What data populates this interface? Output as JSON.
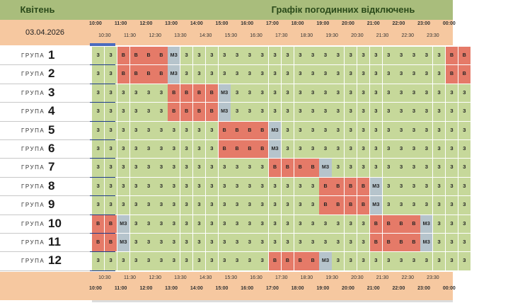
{
  "header": {
    "month": "Квітень",
    "title": "Графік погодинних відключень",
    "date": "03.04.2026"
  },
  "timeline": {
    "hours": [
      "10:00",
      "11:00",
      "12:00",
      "13:00",
      "14:00",
      "15:00",
      "16:00",
      "17:00",
      "18:00",
      "19:00",
      "20:00",
      "21:00",
      "22:00",
      "23:00",
      "00:00"
    ],
    "half_hours": [
      "10:30",
      "11:30",
      "12:30",
      "13:30",
      "14:30",
      "15:30",
      "16:30",
      "17:30",
      "18:30",
      "19:30",
      "20:30",
      "21:30",
      "22:30",
      "23:30"
    ]
  },
  "legend_codes": {
    "on": "З",
    "off": "В",
    "maybe": "МЗ"
  },
  "group_word": "ГРУПА",
  "colors": {
    "on": "#c6d89a",
    "off": "#e57a68",
    "maybe": "#b6c4cc",
    "header": "#a9bd7c",
    "peach": "#f6c8a0"
  },
  "groups": [
    {
      "label": "1",
      "cells": [
        "З",
        "З",
        "В",
        "В",
        "В",
        "В",
        "МЗ",
        "З",
        "З",
        "З",
        "З",
        "З",
        "З",
        "З",
        "З",
        "З",
        "З",
        "З",
        "З",
        "З",
        "З",
        "З",
        "З",
        "З",
        "З",
        "З",
        "З",
        "З",
        "В",
        "В"
      ]
    },
    {
      "label": "2",
      "cells": [
        "З",
        "З",
        "В",
        "В",
        "В",
        "В",
        "МЗ",
        "З",
        "З",
        "З",
        "З",
        "З",
        "З",
        "З",
        "З",
        "З",
        "З",
        "З",
        "З",
        "З",
        "З",
        "З",
        "З",
        "З",
        "З",
        "З",
        "З",
        "З",
        "В",
        "В"
      ]
    },
    {
      "label": "3",
      "cells": [
        "З",
        "З",
        "З",
        "З",
        "З",
        "З",
        "В",
        "В",
        "В",
        "В",
        "МЗ",
        "З",
        "З",
        "З",
        "З",
        "З",
        "З",
        "З",
        "З",
        "З",
        "З",
        "З",
        "З",
        "З",
        "З",
        "З",
        "З",
        "З",
        "З",
        "З"
      ]
    },
    {
      "label": "4",
      "cells": [
        "З",
        "З",
        "З",
        "З",
        "З",
        "З",
        "В",
        "В",
        "В",
        "В",
        "МЗ",
        "З",
        "З",
        "З",
        "З",
        "З",
        "З",
        "З",
        "З",
        "З",
        "З",
        "З",
        "З",
        "З",
        "З",
        "З",
        "З",
        "З",
        "З",
        "З"
      ]
    },
    {
      "label": "5",
      "cells": [
        "З",
        "З",
        "З",
        "З",
        "З",
        "З",
        "З",
        "З",
        "З",
        "З",
        "В",
        "В",
        "В",
        "В",
        "МЗ",
        "З",
        "З",
        "З",
        "З",
        "З",
        "З",
        "З",
        "З",
        "З",
        "З",
        "З",
        "З",
        "З",
        "З",
        "З"
      ]
    },
    {
      "label": "6",
      "cells": [
        "З",
        "З",
        "З",
        "З",
        "З",
        "З",
        "З",
        "З",
        "З",
        "З",
        "В",
        "В",
        "В",
        "В",
        "МЗ",
        "З",
        "З",
        "З",
        "З",
        "З",
        "З",
        "З",
        "З",
        "З",
        "З",
        "З",
        "З",
        "З",
        "З",
        "З"
      ]
    },
    {
      "label": "7",
      "cells": [
        "З",
        "З",
        "З",
        "З",
        "З",
        "З",
        "З",
        "З",
        "З",
        "З",
        "З",
        "З",
        "З",
        "З",
        "В",
        "В",
        "В",
        "В",
        "МЗ",
        "З",
        "З",
        "З",
        "З",
        "З",
        "З",
        "З",
        "З",
        "З",
        "З",
        "З"
      ]
    },
    {
      "label": "8",
      "cells": [
        "З",
        "З",
        "З",
        "З",
        "З",
        "З",
        "З",
        "З",
        "З",
        "З",
        "З",
        "З",
        "З",
        "З",
        "З",
        "З",
        "З",
        "З",
        "В",
        "В",
        "В",
        "В",
        "МЗ",
        "З",
        "З",
        "З",
        "З",
        "З",
        "З",
        "З"
      ]
    },
    {
      "label": "9",
      "cells": [
        "З",
        "З",
        "З",
        "З",
        "З",
        "З",
        "З",
        "З",
        "З",
        "З",
        "З",
        "З",
        "З",
        "З",
        "З",
        "З",
        "З",
        "З",
        "В",
        "В",
        "В",
        "В",
        "МЗ",
        "З",
        "З",
        "З",
        "З",
        "З",
        "З",
        "З"
      ]
    },
    {
      "label": "10",
      "cells": [
        "В",
        "В",
        "МЗ",
        "З",
        "З",
        "З",
        "З",
        "З",
        "З",
        "З",
        "З",
        "З",
        "З",
        "З",
        "З",
        "З",
        "З",
        "З",
        "З",
        "З",
        "З",
        "З",
        "В",
        "В",
        "В",
        "В",
        "МЗ",
        "З",
        "З",
        "З"
      ]
    },
    {
      "label": "11",
      "cells": [
        "В",
        "В",
        "МЗ",
        "З",
        "З",
        "З",
        "З",
        "З",
        "З",
        "З",
        "З",
        "З",
        "З",
        "З",
        "З",
        "З",
        "З",
        "З",
        "З",
        "З",
        "З",
        "З",
        "В",
        "В",
        "В",
        "В",
        "МЗ",
        "З",
        "З",
        "З"
      ]
    },
    {
      "label": "12",
      "cells": [
        "З",
        "З",
        "З",
        "З",
        "З",
        "З",
        "З",
        "З",
        "З",
        "З",
        "З",
        "З",
        "З",
        "З",
        "В",
        "В",
        "В",
        "В",
        "МЗ",
        "З",
        "З",
        "З",
        "З",
        "З",
        "З",
        "З",
        "З",
        "З",
        "З",
        "З"
      ]
    }
  ]
}
